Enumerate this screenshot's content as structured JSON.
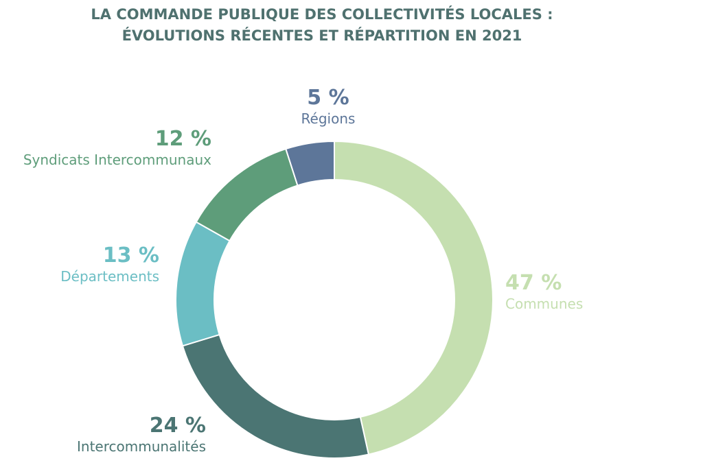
{
  "chart_data": {
    "type": "pie",
    "donut": true,
    "title": "LA COMMANDE PUBLIQUE DES COLLECTIVITÉS LOCALES :",
    "subtitle": "ÉVOLUTIONS RÉCENTES ET RÉPARTITION EN 2021",
    "slices": [
      {
        "label": "Communes",
        "value": 47,
        "value_label": "47 %",
        "color": "#c5dfb0"
      },
      {
        "label": "Intercommunalités",
        "value": 24,
        "value_label": "24 %",
        "color": "#4b7573"
      },
      {
        "label": "Départements",
        "value": 13,
        "value_label": "13 %",
        "color": "#6bbec4"
      },
      {
        "label": "Syndicats Intercommunaux",
        "value": 12,
        "value_label": "12 %",
        "color": "#5e9d7a"
      },
      {
        "label": "Régions",
        "value": 5,
        "value_label": "5 %",
        "color": "#5d7699"
      }
    ]
  }
}
